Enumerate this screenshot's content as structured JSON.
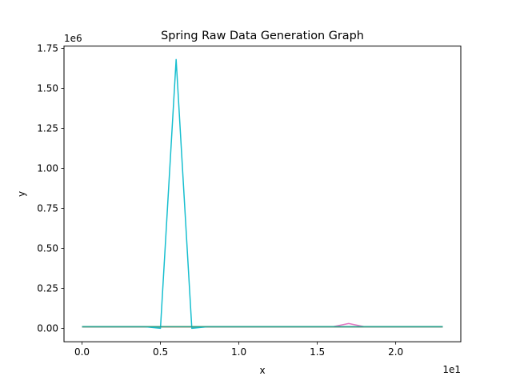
{
  "chart_data": {
    "type": "line",
    "title": "Spring Raw Data Generation Graph",
    "xlabel": "x",
    "ylabel": "y",
    "x_offset_text": "1e1",
    "y_offset_text": "1e6",
    "xlim": [
      -1.15,
      24.15
    ],
    "ylim": [
      -0.084,
      1.764
    ],
    "x_ticks": [
      0.0,
      0.5,
      1.0,
      1.5,
      2.0
    ],
    "x_tick_labels": [
      "0.0",
      "0.5",
      "1.0",
      "1.5",
      "2.0"
    ],
    "y_ticks": [
      0.0,
      0.25,
      0.5,
      0.75,
      1.0,
      1.25,
      1.5,
      1.75
    ],
    "y_tick_labels": [
      "0.00",
      "0.25",
      "0.50",
      "0.75",
      "1.00",
      "1.25",
      "1.50",
      "1.75"
    ],
    "grid": false,
    "legend": "none",
    "x": [
      0,
      1,
      2,
      3,
      4,
      5,
      6,
      7,
      8,
      9,
      10,
      11,
      12,
      13,
      14,
      15,
      16,
      17,
      18,
      19,
      20,
      21,
      22,
      23
    ],
    "series": [
      {
        "color": "#1f77b4",
        "values": [
          0.01,
          0.01,
          0.01,
          0.01,
          0.01,
          0.01,
          0.01,
          0.01,
          0.01,
          0.01,
          0.01,
          0.01,
          0.01,
          0.01,
          0.01,
          0.01,
          0.01,
          0.01,
          0.01,
          0.01,
          0.01,
          0.01,
          0.01,
          0.01
        ]
      },
      {
        "color": "#ff7f0e",
        "values": [
          0.01,
          0.01,
          0.01,
          0.01,
          0.01,
          0.01,
          0.01,
          0.01,
          0.01,
          0.01,
          0.01,
          0.01,
          0.01,
          0.01,
          0.01,
          0.01,
          0.01,
          0.01,
          0.01,
          0.01,
          0.01,
          0.01,
          0.01,
          0.01
        ]
      },
      {
        "color": "#2ca02c",
        "values": [
          0.01,
          0.01,
          0.01,
          0.01,
          0.01,
          0.01,
          0.01,
          0.01,
          0.01,
          0.01,
          0.01,
          0.01,
          0.01,
          0.01,
          0.01,
          0.01,
          0.01,
          0.01,
          0.01,
          0.01,
          0.01,
          0.01,
          0.01,
          0.01
        ]
      },
      {
        "color": "#d62728",
        "values": [
          0.01,
          0.01,
          0.01,
          0.01,
          0.01,
          0.01,
          0.01,
          0.01,
          0.01,
          0.01,
          0.01,
          0.01,
          0.01,
          0.01,
          0.01,
          0.01,
          0.01,
          0.01,
          0.01,
          0.01,
          0.01,
          0.01,
          0.01,
          0.01
        ]
      },
      {
        "color": "#9467bd",
        "values": [
          0.01,
          0.01,
          0.01,
          0.01,
          0.01,
          0.01,
          0.01,
          0.01,
          0.01,
          0.01,
          0.01,
          0.01,
          0.01,
          0.01,
          0.01,
          0.01,
          0.01,
          0.01,
          0.01,
          0.01,
          0.01,
          0.01,
          0.01,
          0.01
        ]
      },
      {
        "color": "#8c564b",
        "values": [
          0.01,
          0.01,
          0.01,
          0.01,
          0.01,
          0.01,
          0.01,
          0.01,
          0.01,
          0.01,
          0.01,
          0.01,
          0.01,
          0.01,
          0.01,
          0.01,
          0.01,
          0.01,
          0.01,
          0.01,
          0.01,
          0.01,
          0.01,
          0.01
        ]
      },
      {
        "color": "#e377c2",
        "values": [
          0.01,
          0.01,
          0.01,
          0.01,
          0.01,
          0.01,
          0.01,
          0.01,
          0.01,
          0.01,
          0.01,
          0.01,
          0.01,
          0.01,
          0.01,
          0.01,
          0.01,
          0.03,
          0.01,
          0.01,
          0.01,
          0.01,
          0.01,
          0.01
        ]
      },
      {
        "color": "#7f7f7f",
        "values": [
          0.01,
          0.01,
          0.01,
          0.01,
          0.01,
          0.01,
          0.01,
          0.01,
          0.01,
          0.01,
          0.01,
          0.01,
          0.01,
          0.01,
          0.01,
          0.01,
          0.01,
          0.01,
          0.01,
          0.01,
          0.01,
          0.01,
          0.01,
          0.01
        ]
      },
      {
        "color": "#bcbd22",
        "values": [
          0.01,
          0.01,
          0.01,
          0.01,
          0.01,
          0.01,
          0.01,
          0.01,
          0.01,
          0.01,
          0.01,
          0.01,
          0.01,
          0.01,
          0.01,
          0.01,
          0.01,
          0.01,
          0.01,
          0.01,
          0.01,
          0.01,
          0.01,
          0.01
        ]
      },
      {
        "color": "#17becf",
        "values": [
          0.01,
          0.01,
          0.01,
          0.01,
          0.01,
          0.0,
          1.68,
          0.0,
          0.01,
          0.01,
          0.01,
          0.01,
          0.01,
          0.01,
          0.01,
          0.01,
          0.01,
          0.01,
          0.01,
          0.01,
          0.01,
          0.01,
          0.01,
          0.01
        ]
      },
      {
        "color": "#2ca08c",
        "values": [
          0.01,
          0.01,
          0.01,
          0.01,
          0.01,
          0.01,
          0.01,
          0.01,
          0.01,
          0.01,
          0.01,
          0.01,
          0.01,
          0.01,
          0.01,
          0.01,
          0.01,
          0.01,
          0.01,
          0.01,
          0.01,
          0.01,
          0.01,
          0.01
        ]
      }
    ]
  }
}
